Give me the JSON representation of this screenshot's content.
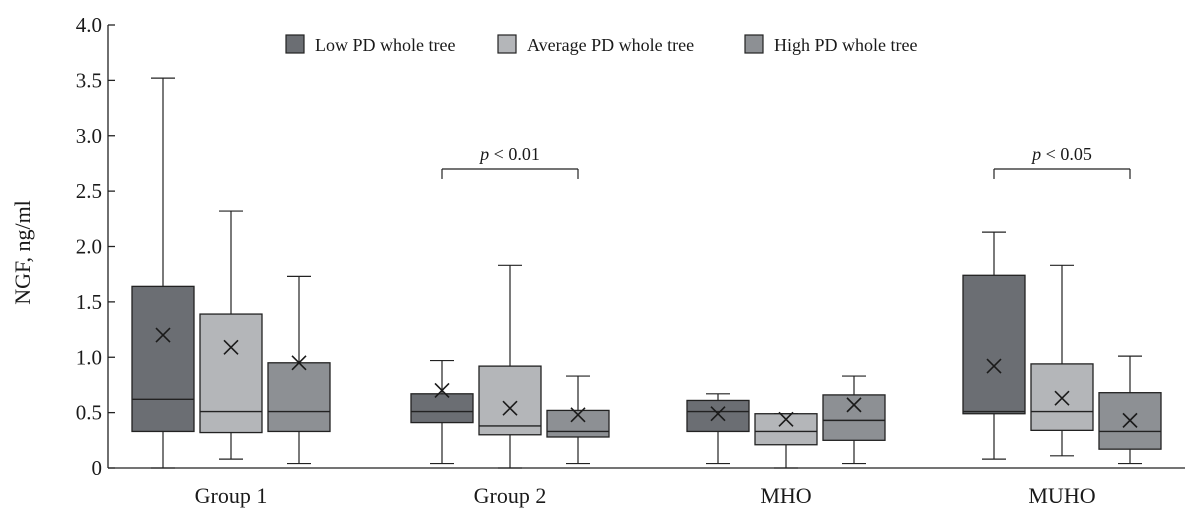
{
  "chart_data": {
    "type": "box",
    "ylabel": "NGF, ng/ml",
    "ylim": [
      0,
      4.0
    ],
    "yticks": [
      {
        "value": 0,
        "label": "0"
      },
      {
        "value": 0.5,
        "label": "0.5"
      },
      {
        "value": 1.0,
        "label": "1.0"
      },
      {
        "value": 1.5,
        "label": "1.5"
      },
      {
        "value": 2.0,
        "label": "2.0"
      },
      {
        "value": 2.5,
        "label": "2.5"
      },
      {
        "value": 3.0,
        "label": "3.0"
      },
      {
        "value": 3.5,
        "label": "3.5"
      },
      {
        "value": 4.0,
        "label": "4.0"
      }
    ],
    "categories": [
      "Group 1",
      "Group 2",
      "MHO",
      "MUHO"
    ],
    "legend_position": "top",
    "grid": false,
    "series": [
      {
        "name": "Low PD whole tree",
        "color": "#6b6e73",
        "boxes": [
          {
            "whisker_low": 0.0,
            "q1": 0.33,
            "median": 0.62,
            "q3": 1.64,
            "whisker_high": 3.52,
            "mean": 1.2
          },
          {
            "whisker_low": 0.04,
            "q1": 0.41,
            "median": 0.51,
            "q3": 0.67,
            "whisker_high": 0.97,
            "mean": 0.7
          },
          {
            "whisker_low": 0.04,
            "q1": 0.33,
            "median": 0.51,
            "q3": 0.61,
            "whisker_high": 0.67,
            "mean": 0.49
          },
          {
            "whisker_low": 0.08,
            "q1": 0.49,
            "median": 0.51,
            "q3": 1.74,
            "whisker_high": 2.13,
            "mean": 0.92
          }
        ]
      },
      {
        "name": "Average PD whole tree",
        "color": "#b4b6b9",
        "boxes": [
          {
            "whisker_low": 0.08,
            "q1": 0.32,
            "median": 0.51,
            "q3": 1.39,
            "whisker_high": 2.32,
            "mean": 1.09
          },
          {
            "whisker_low": 0.0,
            "q1": 0.3,
            "median": 0.38,
            "q3": 0.92,
            "whisker_high": 1.83,
            "mean": 0.54
          },
          {
            "whisker_low": 0.0,
            "q1": 0.21,
            "median": 0.33,
            "q3": 0.49,
            "whisker_high": 0.49,
            "mean": 0.44
          },
          {
            "whisker_low": 0.11,
            "q1": 0.34,
            "median": 0.51,
            "q3": 0.94,
            "whisker_high": 1.83,
            "mean": 0.63
          }
        ]
      },
      {
        "name": "High PD whole tree",
        "color": "#8d9094",
        "boxes": [
          {
            "whisker_low": 0.04,
            "q1": 0.33,
            "median": 0.51,
            "q3": 0.95,
            "whisker_high": 1.73,
            "mean": 0.95
          },
          {
            "whisker_low": 0.04,
            "q1": 0.28,
            "median": 0.33,
            "q3": 0.52,
            "whisker_high": 0.83,
            "mean": 0.48
          },
          {
            "whisker_low": 0.04,
            "q1": 0.25,
            "median": 0.43,
            "q3": 0.66,
            "whisker_high": 0.83,
            "mean": 0.57
          },
          {
            "whisker_low": 0.04,
            "q1": 0.17,
            "median": 0.33,
            "q3": 0.68,
            "whisker_high": 1.01,
            "mean": 0.43
          }
        ]
      }
    ],
    "annotations": [
      {
        "category": "Group 2",
        "from_series": 0,
        "to_series": 2,
        "y": 2.7,
        "label_p": "p",
        "label_rest": " < 0.01"
      },
      {
        "category": "MUHO",
        "from_series": 0,
        "to_series": 2,
        "y": 2.7,
        "label_p": "p",
        "label_rest": " < 0.05"
      }
    ]
  }
}
